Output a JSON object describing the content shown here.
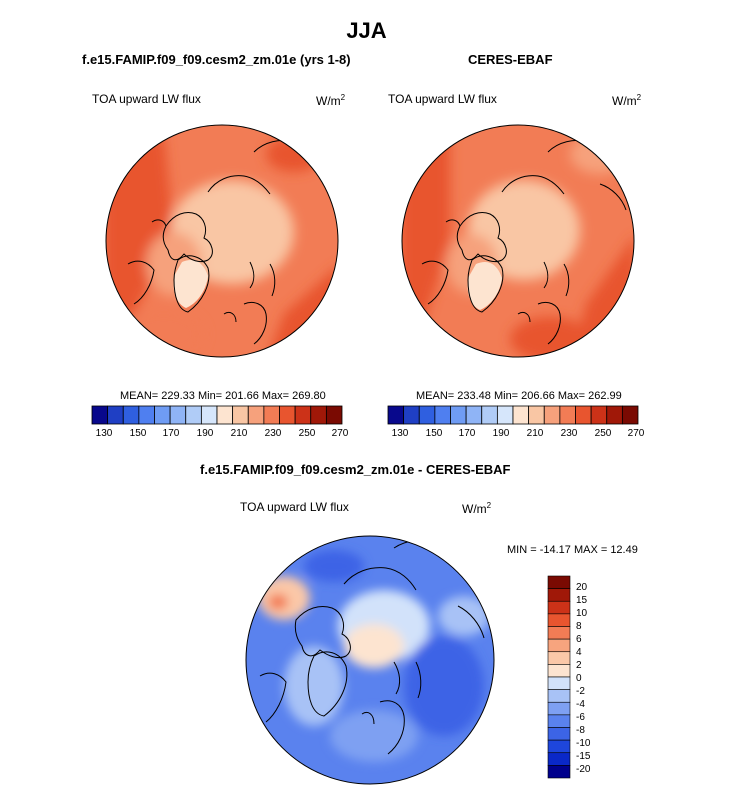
{
  "title": "JJA",
  "panels": [
    {
      "title": "f.e15.FAMIP.f09_f09.cesm2_zm.01e (yrs 1-8)",
      "variable": "TOA upward LW flux",
      "units_base": "W/m",
      "units_exp": "2",
      "stats": "MEAN= 229.33  Min= 201.66  Max= 269.80",
      "colorbar_labels": [
        "130",
        "150",
        "170",
        "190",
        "210",
        "230",
        "250",
        "270"
      ]
    },
    {
      "title": "CERES-EBAF",
      "variable": "TOA upward LW flux",
      "units_base": "W/m",
      "units_exp": "2",
      "stats": "MEAN= 233.48  Min= 206.66  Max= 262.99",
      "colorbar_labels": [
        "130",
        "150",
        "170",
        "190",
        "210",
        "230",
        "250",
        "270"
      ]
    }
  ],
  "diff_panel": {
    "title": "f.e15.FAMIP.f09_f09.cesm2_zm.01e - CERES-EBAF",
    "variable": "TOA upward LW flux",
    "units_base": "W/m",
    "units_exp": "2",
    "stats": "MIN = -14.17 MAX =  12.49",
    "colorbar_labels": [
      "20",
      "15",
      "10",
      "8",
      "6",
      "4",
      "2",
      "0",
      "-2",
      "-4",
      "-6",
      "-8",
      "-10",
      "-15",
      "-20"
    ]
  },
  "chart_data": [
    {
      "type": "heatmap",
      "projection": "polar stereographic (north pole)",
      "title": "f.e15.FAMIP.f09_f09.cesm2_zm.01e (yrs 1-8)",
      "variable": "TOA upward LW flux",
      "units": "W/m2",
      "season": "JJA",
      "mean": 229.33,
      "min": 201.66,
      "max": 269.8,
      "levels": [
        130,
        140,
        150,
        160,
        170,
        180,
        190,
        200,
        210,
        220,
        230,
        240,
        250,
        260,
        270
      ],
      "colors": [
        "#08088c",
        "#1f3fc4",
        "#2f5fe0",
        "#4f7ff0",
        "#6f9cf4",
        "#8fb4f6",
        "#b0ccf7",
        "#d6e6fb",
        "#fde4d0",
        "#f9c6a4",
        "#f6a17c",
        "#f27c55",
        "#e8552f",
        "#cc3218",
        "#a01808",
        "#7a0a02"
      ]
    },
    {
      "type": "heatmap",
      "projection": "polar stereographic (north pole)",
      "title": "CERES-EBAF",
      "variable": "TOA upward LW flux",
      "units": "W/m2",
      "season": "JJA",
      "mean": 233.48,
      "min": 206.66,
      "max": 262.99,
      "levels": [
        130,
        140,
        150,
        160,
        170,
        180,
        190,
        200,
        210,
        220,
        230,
        240,
        250,
        260,
        270
      ],
      "colors": [
        "#08088c",
        "#1f3fc4",
        "#2f5fe0",
        "#4f7ff0",
        "#6f9cf4",
        "#8fb4f6",
        "#b0ccf7",
        "#d6e6fb",
        "#fde4d0",
        "#f9c6a4",
        "#f6a17c",
        "#f27c55",
        "#e8552f",
        "#cc3218",
        "#a01808",
        "#7a0a02"
      ]
    },
    {
      "type": "heatmap",
      "projection": "polar stereographic (north pole)",
      "title": "f.e15.FAMIP.f09_f09.cesm2_zm.01e - CERES-EBAF",
      "variable": "TOA upward LW flux",
      "units": "W/m2",
      "season": "JJA",
      "min": -14.17,
      "max": 12.49,
      "levels": [
        -20,
        -15,
        -10,
        -8,
        -6,
        -4,
        -2,
        0,
        2,
        4,
        6,
        8,
        10,
        15,
        20
      ],
      "colors": [
        "#00008c",
        "#0a28c8",
        "#1e46dc",
        "#3c64e6",
        "#5a82ee",
        "#7ea0f2",
        "#a8c2f6",
        "#d2e2fa",
        "#fde4d0",
        "#fbc8a8",
        "#f7a47e",
        "#f27c55",
        "#e8552f",
        "#cc3218",
        "#a01808",
        "#7a0a02"
      ]
    }
  ]
}
